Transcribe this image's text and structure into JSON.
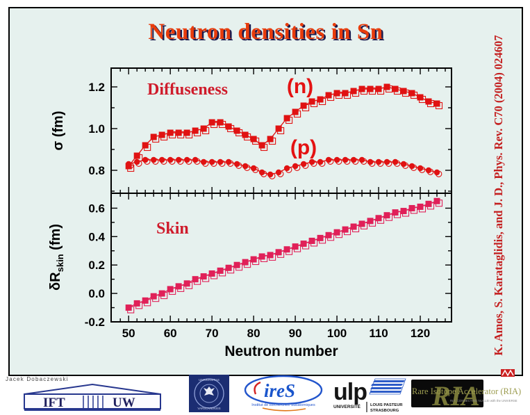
{
  "slide": {
    "title": "Neutron densities in Sn",
    "author": "Jacek Dobaczewski",
    "citation": "K. Amos, S. Karataglidis, and J. D., Phys. Rev. C70 (2004) 024607",
    "background_color": "#e6f1ee",
    "title_color": "#e83c0c",
    "citation_color": "#c42020"
  },
  "chart_data": [
    {
      "type": "line",
      "panel": "top",
      "title": "Diffuseness",
      "ylabel": "σ (fm)",
      "ylabel_parts": {
        "base": "σ",
        "sub": "",
        "unit": " (fm)"
      },
      "ylim": [
        0.69,
        1.29
      ],
      "yticks": [
        0.8,
        1.0,
        1.2
      ],
      "yticks_minor": [
        0.7,
        0.9,
        1.1
      ],
      "x": [
        50,
        52,
        54,
        56,
        58,
        60,
        62,
        64,
        66,
        68,
        70,
        72,
        74,
        76,
        78,
        80,
        82,
        84,
        86,
        88,
        90,
        92,
        94,
        96,
        98,
        100,
        102,
        104,
        106,
        108,
        110,
        112,
        114,
        116,
        118,
        120,
        122,
        124
      ],
      "series": [
        {
          "name": "(n)",
          "marker": "square",
          "color": "#e01212",
          "values": [
            0.82,
            0.87,
            0.92,
            0.96,
            0.97,
            0.98,
            0.98,
            0.98,
            0.99,
            1.0,
            1.03,
            1.03,
            1.01,
            0.99,
            0.97,
            0.95,
            0.92,
            0.95,
            1.0,
            1.05,
            1.08,
            1.11,
            1.13,
            1.14,
            1.16,
            1.17,
            1.17,
            1.18,
            1.19,
            1.19,
            1.19,
            1.2,
            1.19,
            1.18,
            1.17,
            1.15,
            1.13,
            1.12
          ]
        },
        {
          "name": "(p)",
          "marker": "circle",
          "color": "#e01212",
          "values": [
            0.83,
            0.84,
            0.85,
            0.85,
            0.85,
            0.85,
            0.85,
            0.85,
            0.85,
            0.84,
            0.84,
            0.84,
            0.84,
            0.83,
            0.82,
            0.81,
            0.79,
            0.78,
            0.79,
            0.81,
            0.82,
            0.83,
            0.84,
            0.84,
            0.85,
            0.85,
            0.85,
            0.85,
            0.85,
            0.84,
            0.84,
            0.84,
            0.84,
            0.83,
            0.82,
            0.81,
            0.8,
            0.79
          ]
        }
      ],
      "grid": false,
      "legend_position": "inline-annotations"
    },
    {
      "type": "line",
      "panel": "bottom",
      "title": "Skin",
      "ylabel": "δR_skin (fm)",
      "ylabel_parts": {
        "base": "δR",
        "sub": "skin",
        "unit": " (fm)"
      },
      "ylim": [
        -0.2,
        0.705
      ],
      "yticks": [
        -0.2,
        0.0,
        0.2,
        0.4,
        0.6
      ],
      "yticks_minor": [
        -0.1,
        0.1,
        0.3,
        0.5
      ],
      "xlabel": "Neutron number",
      "xlim": [
        45.8,
        127.5
      ],
      "xticks": [
        50,
        60,
        70,
        80,
        90,
        100,
        110,
        120
      ],
      "xticks_minor_step": 2,
      "x": [
        50,
        52,
        54,
        56,
        58,
        60,
        62,
        64,
        66,
        68,
        70,
        72,
        74,
        76,
        78,
        80,
        82,
        84,
        86,
        88,
        90,
        92,
        94,
        96,
        98,
        100,
        102,
        104,
        106,
        108,
        110,
        112,
        114,
        116,
        118,
        120,
        122,
        124
      ],
      "series": [
        {
          "name": "skin",
          "marker": "square",
          "color": "#e02058",
          "values": [
            -0.1,
            -0.07,
            -0.05,
            -0.02,
            0.0,
            0.03,
            0.05,
            0.07,
            0.1,
            0.12,
            0.14,
            0.16,
            0.18,
            0.2,
            0.22,
            0.24,
            0.26,
            0.27,
            0.29,
            0.31,
            0.33,
            0.35,
            0.37,
            0.39,
            0.41,
            0.43,
            0.45,
            0.47,
            0.49,
            0.51,
            0.53,
            0.55,
            0.57,
            0.58,
            0.6,
            0.61,
            0.63,
            0.65
          ]
        }
      ],
      "grid": false
    }
  ],
  "annotation_colors": {
    "panel_title": "#cf1b2b",
    "series_label": "#e41212"
  },
  "logos": {
    "ift_uw": {
      "left": "IFT",
      "right": "UW"
    },
    "uw_seal": {
      "top": "UNIVERSITAS",
      "bottom": "VARSOVIENSIS"
    },
    "ires": {
      "name": "ireS",
      "subtitle": "Institut de Recherches Subatomiques"
    },
    "ulp": {
      "name": "ulp",
      "line1": "UNIVERSITÉ",
      "line2": "LOUIS PASTEUR",
      "line3": "STRASBOURG"
    },
    "ria": {
      "monogram": "RIA",
      "title": "Rare Isotope Accelerator (RIA)",
      "tagline": "RIA: CONNECTING NUCLEI with the UNIVERSE"
    }
  }
}
